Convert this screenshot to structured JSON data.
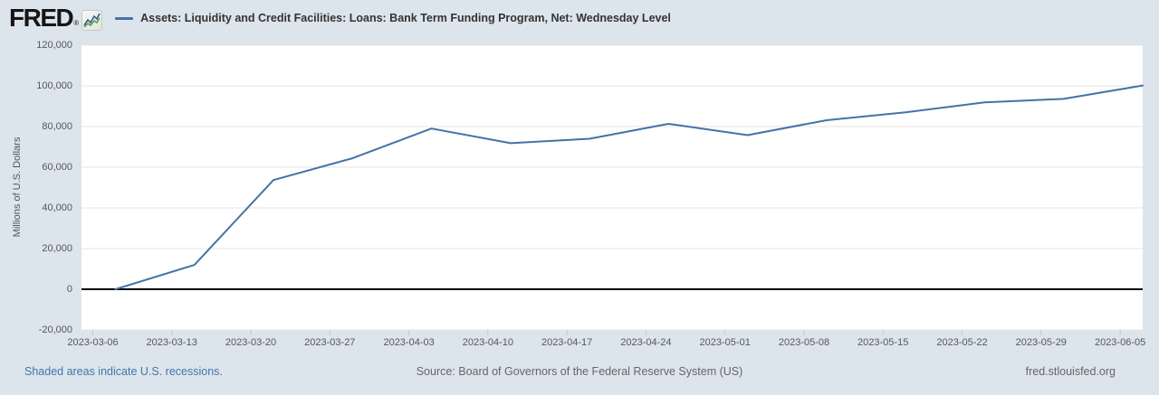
{
  "theme": {
    "background": "#dce4ec",
    "link_color": "#4477aa",
    "muted_text_color": "#666666"
  },
  "header": {
    "logo_text": "FRED",
    "registered_mark": "®",
    "logo_icon": "fred-sparkline-icon"
  },
  "chart_data": {
    "type": "line",
    "title": "Assets: Liquidity and Credit Facilities: Loans: Bank Term Funding Program, Net: Wednesday Level",
    "ylabel": "Millions of U.S. Dollars",
    "xlabel": "",
    "x": [
      "2023-03-08",
      "2023-03-15",
      "2023-03-22",
      "2023-03-29",
      "2023-04-05",
      "2023-04-12",
      "2023-04-19",
      "2023-04-26",
      "2023-05-03",
      "2023-05-10",
      "2023-05-17",
      "2023-05-24",
      "2023-05-31",
      "2023-06-07"
    ],
    "values": [
      0,
      11943,
      53669,
      64403,
      79021,
      71837,
      73982,
      81327,
      75778,
      83101,
      87006,
      91907,
      93615,
      100161
    ],
    "x_ticks": [
      "2023-03-06",
      "2023-03-13",
      "2023-03-20",
      "2023-03-27",
      "2023-04-03",
      "2023-04-10",
      "2023-04-17",
      "2023-04-24",
      "2023-05-01",
      "2023-05-08",
      "2023-05-15",
      "2023-05-22",
      "2023-05-29",
      "2023-06-05"
    ],
    "y_ticks": [
      {
        "value": 120000,
        "label": "120,000"
      },
      {
        "value": 100000,
        "label": "100,000"
      },
      {
        "value": 80000,
        "label": "80,000"
      },
      {
        "value": 60000,
        "label": "60,000"
      },
      {
        "value": 40000,
        "label": "40,000"
      },
      {
        "value": 20000,
        "label": "20,000"
      },
      {
        "value": 0,
        "label": "0"
      },
      {
        "value": -20000,
        "label": "-20,000"
      }
    ],
    "ylim": [
      -20000,
      120000
    ],
    "xlim": [
      "2023-03-05",
      "2023-06-07"
    ],
    "grid": "horizontal",
    "legend_position": "top",
    "line_color": "#4572a7",
    "zero_line_color": "#000000",
    "grid_color": "#e6e6e6",
    "axis_tick_color": "#c8c8c8",
    "plot_bg": "#ffffff"
  },
  "footer": {
    "recession_note": "Shaded areas indicate U.S. recessions.",
    "source": "Source: Board of Governors of the Federal Reserve System (US)",
    "site_link": "fred.stlouisfed.org"
  }
}
